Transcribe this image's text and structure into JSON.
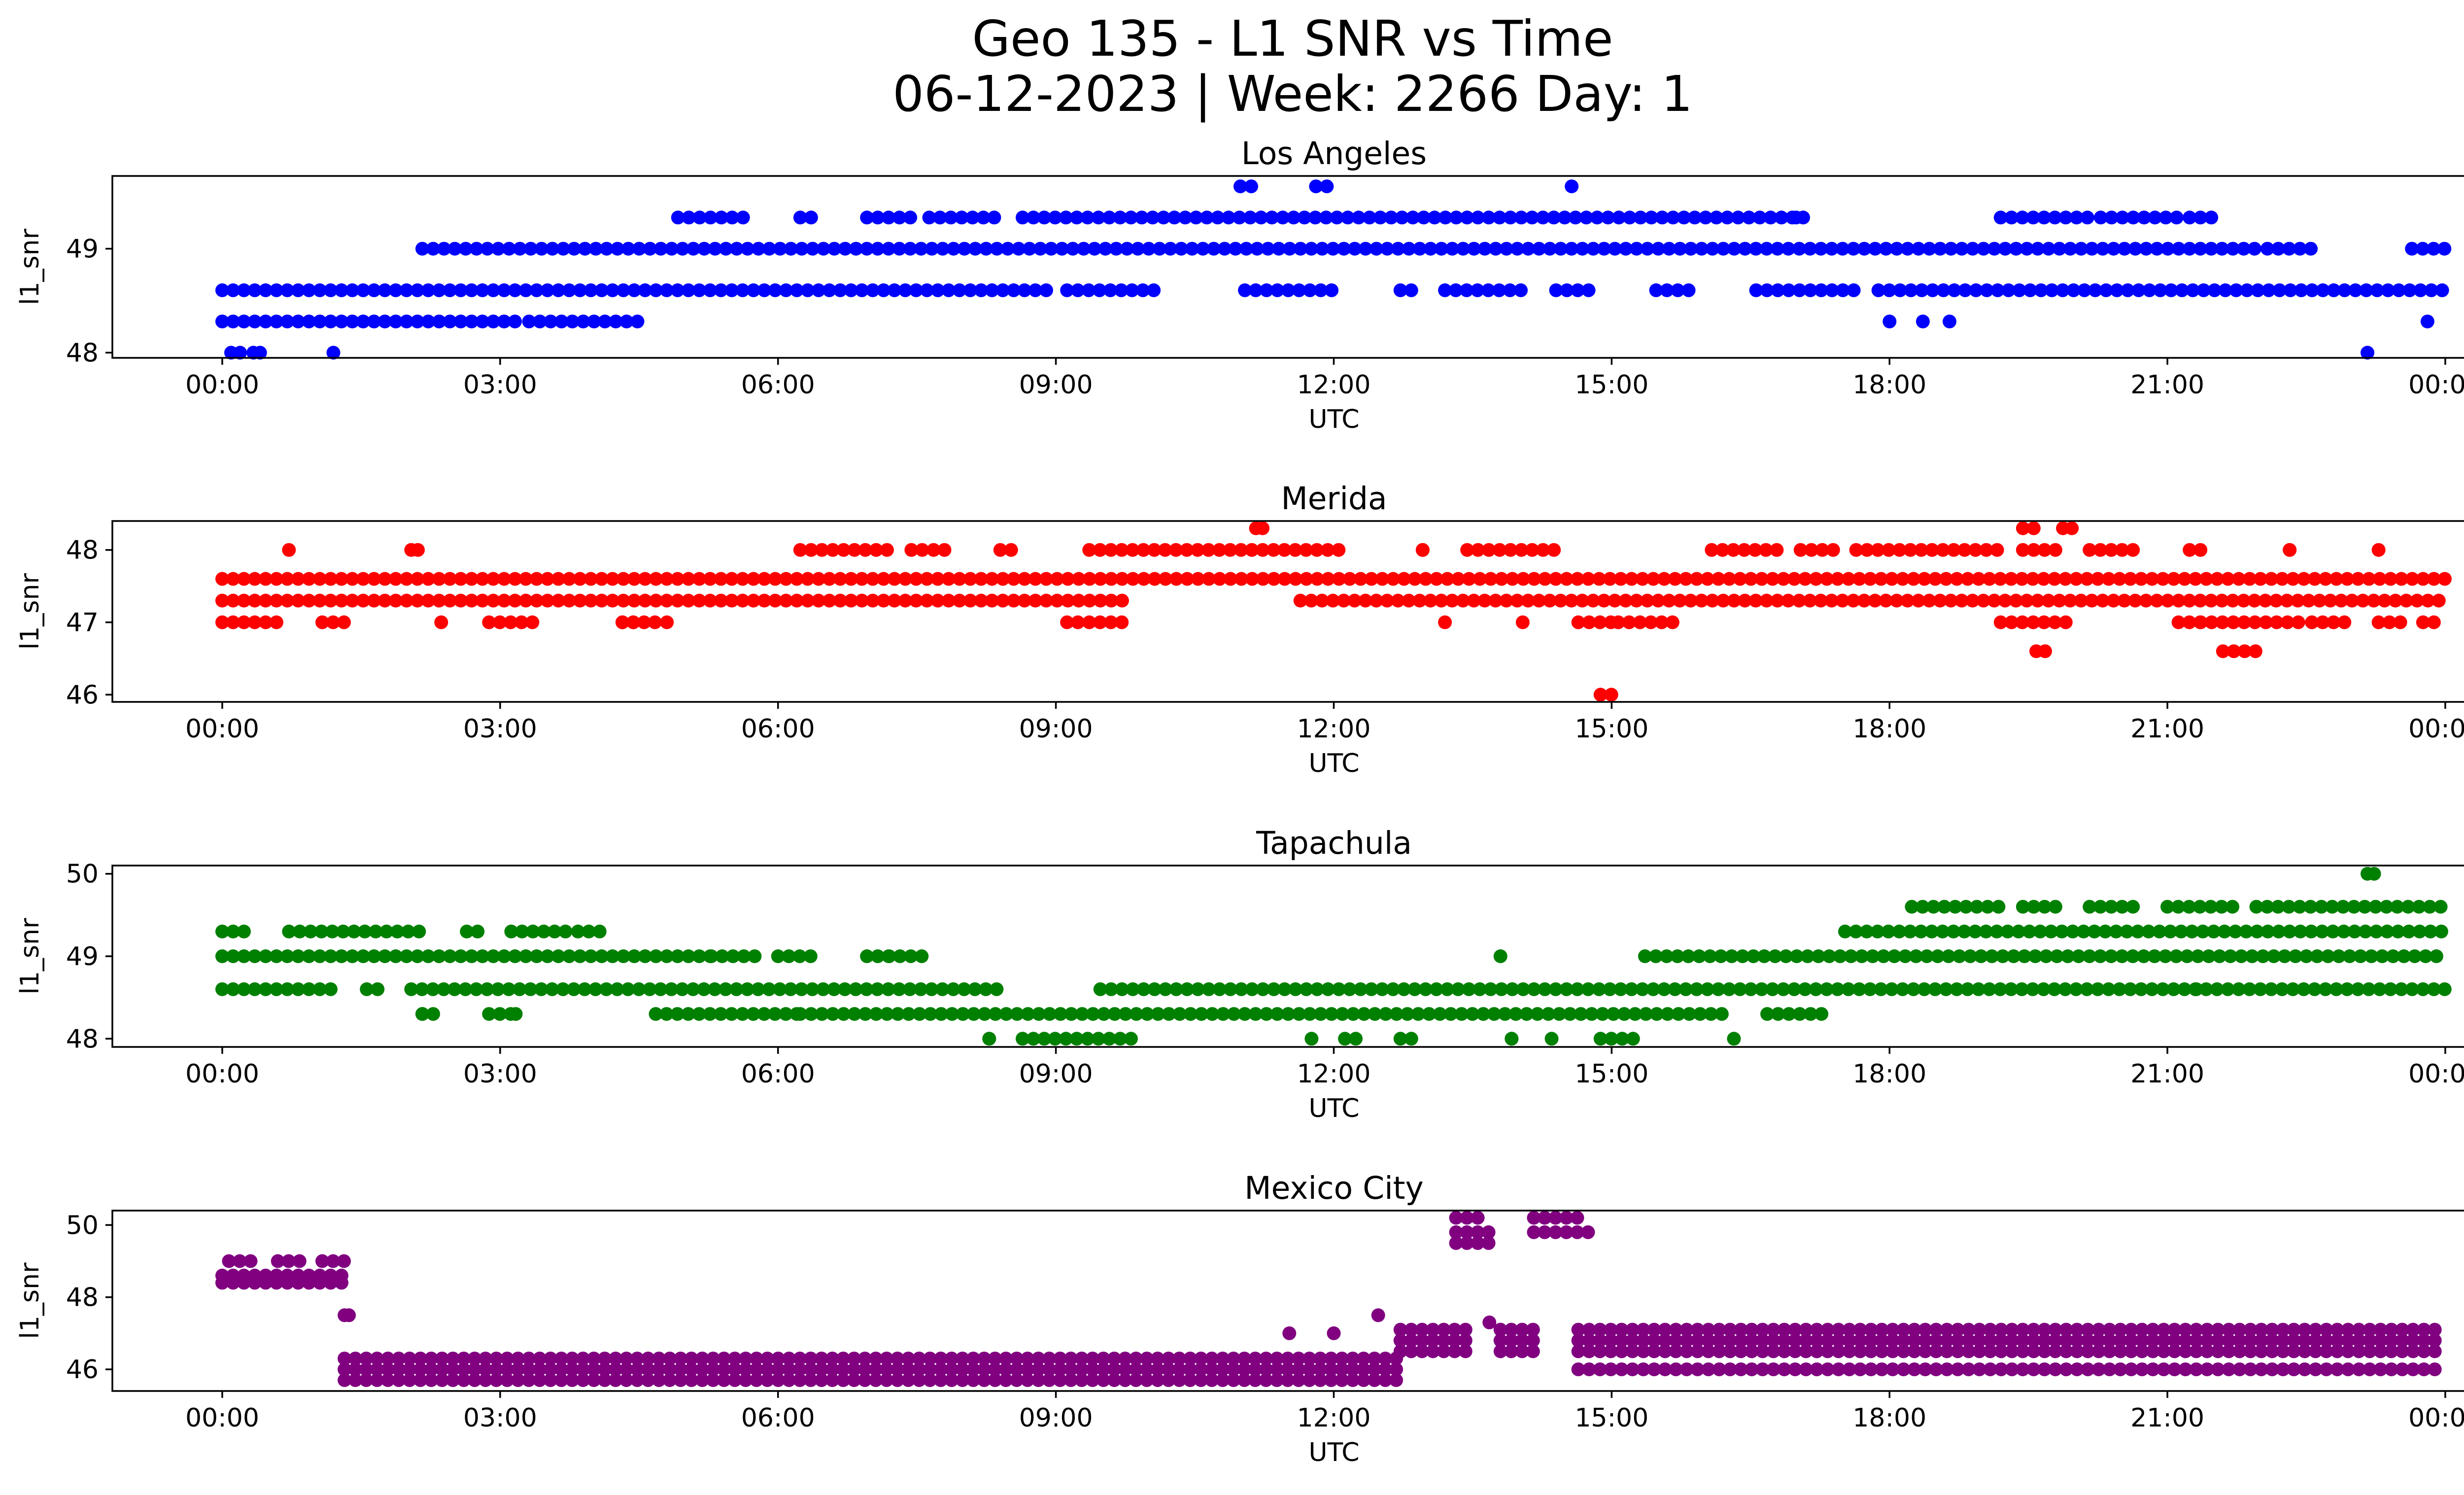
{
  "figure": {
    "title_line1": "Geo 135 - L1 SNR vs Time",
    "title_line2": "06-12-2023 | Week: 2266 Day: 1"
  },
  "chart_data": [
    {
      "type": "scatter",
      "title": "Los Angeles",
      "xlabel": "UTC",
      "ylabel": "l1_snr",
      "color": "#0000ff",
      "xlim": [
        -0.05,
        1.0
      ],
      "ylim": [
        47.95,
        49.7
      ],
      "x_ticks": [
        "00:00",
        "03:00",
        "06:00",
        "09:00",
        "12:00",
        "15:00",
        "18:00",
        "21:00",
        "00:00"
      ],
      "y_ticks": [
        48,
        49
      ],
      "grid": false,
      "bands": [
        {
          "y": 48.0,
          "segments": [
            [
              0.004,
              0.008
            ],
            [
              0.014,
              0.017
            ]
          ]
        },
        {
          "y": 48.3,
          "segments": [
            [
              0.0,
              0.135
            ],
            [
              0.138,
              0.188
            ]
          ]
        },
        {
          "y": 48.6,
          "segments": [
            [
              0.0,
              0.375
            ],
            [
              0.38,
              0.42
            ],
            [
              0.46,
              0.5
            ],
            [
              0.53,
              0.536
            ],
            [
              0.55,
              0.585
            ],
            [
              0.6,
              0.615
            ],
            [
              0.645,
              0.66
            ],
            [
              0.69,
              0.735
            ],
            [
              0.745,
              1.0
            ]
          ]
        },
        {
          "y": 49.0,
          "segments": [
            [
              0.09,
              0.915
            ],
            [
              0.92,
              0.94
            ],
            [
              0.985,
              1.0
            ]
          ]
        },
        {
          "y": 49.3,
          "segments": [
            [
              0.205,
              0.235
            ],
            [
              0.26,
              0.266
            ],
            [
              0.29,
              0.31
            ],
            [
              0.318,
              0.35
            ],
            [
              0.36,
              0.715
            ],
            [
              0.8,
              0.84
            ],
            [
              0.845,
              0.88
            ],
            [
              0.885,
              0.895
            ]
          ]
        },
        {
          "y": 49.6,
          "segments": [
            [
              0.458,
              0.465
            ],
            [
              0.492,
              0.5
            ]
          ]
        }
      ],
      "points": [
        {
          "x": 0.05,
          "y": 48.0
        },
        {
          "x": 0.965,
          "y": 48.0
        },
        {
          "x": 0.708,
          "y": 49.3
        },
        {
          "x": 0.607,
          "y": 49.6
        },
        {
          "x": 0.75,
          "y": 48.3
        },
        {
          "x": 0.765,
          "y": 48.3
        },
        {
          "x": 0.777,
          "y": 48.3
        },
        {
          "x": 0.992,
          "y": 48.3
        }
      ]
    },
    {
      "type": "scatter",
      "title": "Merida",
      "xlabel": "UTC",
      "ylabel": "l1_snr",
      "color": "#ff0000",
      "xlim": [
        -0.05,
        1.0
      ],
      "ylim": [
        45.9,
        48.4
      ],
      "x_ticks": [
        "00:00",
        "03:00",
        "06:00",
        "09:00",
        "12:00",
        "15:00",
        "18:00",
        "21:00",
        "00:00"
      ],
      "y_ticks": [
        46,
        47,
        48
      ],
      "grid": false,
      "bands": [
        {
          "y": 46.0,
          "segments": [
            [
              0.62,
              0.625
            ]
          ]
        },
        {
          "y": 46.6,
          "segments": [
            [
              0.816,
              0.82
            ],
            [
              0.9,
              0.915
            ]
          ]
        },
        {
          "y": 47.0,
          "segments": [
            [
              0.0,
              0.025
            ],
            [
              0.045,
              0.055
            ],
            [
              0.12,
              0.14
            ],
            [
              0.18,
              0.185
            ],
            [
              0.18,
              0.195
            ],
            [
              0.39,
              0.405
            ],
            [
              0.38,
              0.385
            ],
            [
              0.61,
              0.625
            ],
            [
              0.628,
              0.655
            ],
            [
              0.8,
              0.83
            ],
            [
              0.88,
              0.89
            ],
            [
              0.89,
              0.935
            ],
            [
              0.94,
              0.955
            ],
            [
              0.97,
              0.98
            ],
            [
              0.99,
              0.997
            ]
          ]
        },
        {
          "y": 47.3,
          "segments": [
            [
              0.0,
              0.405
            ],
            [
              0.485,
              1.0
            ]
          ]
        },
        {
          "y": 47.6,
          "segments": [
            [
              0.0,
              1.0
            ]
          ]
        },
        {
          "y": 48.0,
          "segments": [
            [
              0.26,
              0.3
            ],
            [
              0.31,
              0.315
            ],
            [
              0.32,
              0.325
            ],
            [
              0.35,
              0.355
            ],
            [
              0.39,
              0.505
            ],
            [
              0.54,
              0.54
            ],
            [
              0.56,
              0.6
            ],
            [
              0.67,
              0.7
            ],
            [
              0.71,
              0.725
            ],
            [
              0.735,
              0.8
            ],
            [
              0.81,
              0.825
            ],
            [
              0.84,
              0.86
            ],
            [
              0.885,
              0.89
            ],
            [
              0.93,
              0.93
            ]
          ]
        },
        {
          "y": 48.3,
          "segments": [
            [
              0.465,
              0.468
            ],
            [
              0.81,
              0.815
            ],
            [
              0.828,
              0.832
            ]
          ]
        }
      ],
      "points": [
        {
          "x": 0.03,
          "y": 48.0
        },
        {
          "x": 0.085,
          "y": 48.0
        },
        {
          "x": 0.088,
          "y": 48.0
        },
        {
          "x": 0.0985,
          "y": 47.0
        },
        {
          "x": 0.2,
          "y": 47.0
        },
        {
          "x": 0.55,
          "y": 47.0
        },
        {
          "x": 0.585,
          "y": 47.0
        },
        {
          "x": 0.97,
          "y": 48.0
        }
      ]
    },
    {
      "type": "scatter",
      "title": "Tapachula",
      "xlabel": "UTC",
      "ylabel": "l1_snr",
      "color": "#008000",
      "xlim": [
        -0.05,
        1.0
      ],
      "ylim": [
        47.9,
        50.1
      ],
      "x_ticks": [
        "00:00",
        "03:00",
        "06:00",
        "09:00",
        "12:00",
        "15:00",
        "18:00",
        "21:00",
        "00:00"
      ],
      "y_ticks": [
        48,
        49,
        50
      ],
      "grid": false,
      "bands": [
        {
          "y": 48.0,
          "segments": [
            [
              0.345,
              0.345
            ],
            [
              0.36,
              0.41
            ],
            [
              0.505,
              0.51
            ],
            [
              0.53,
              0.535
            ],
            [
              0.58,
              0.58
            ],
            [
              0.62,
              0.635
            ]
          ]
        },
        {
          "y": 48.3,
          "segments": [
            [
              0.09,
              0.095
            ],
            [
              0.12,
              0.13
            ],
            [
              0.195,
              0.26
            ],
            [
              0.26,
              0.675
            ],
            [
              0.695,
              0.72
            ]
          ]
        },
        {
          "y": 48.6,
          "segments": [
            [
              0.0,
              0.05
            ],
            [
              0.065,
              0.07
            ],
            [
              0.085,
              0.35
            ],
            [
              0.395,
              1.0
            ]
          ]
        },
        {
          "y": 49.0,
          "segments": [
            [
              0.0,
              0.22
            ],
            [
              0.22,
              0.24
            ],
            [
              0.25,
              0.265
            ],
            [
              0.29,
              0.3
            ],
            [
              0.3,
              0.315
            ],
            [
              0.64,
              1.0
            ]
          ]
        },
        {
          "y": 49.3,
          "segments": [
            [
              0.0,
              0.01
            ],
            [
              0.03,
              0.09
            ],
            [
              0.11,
              0.115
            ],
            [
              0.13,
              0.155
            ],
            [
              0.16,
              0.17
            ],
            [
              0.73,
              1.0
            ]
          ]
        },
        {
          "y": 49.6,
          "segments": [
            [
              0.76,
              0.8
            ],
            [
              0.81,
              0.825
            ],
            [
              0.84,
              0.86
            ],
            [
              0.875,
              0.905
            ],
            [
              0.915,
              1.0
            ]
          ]
        },
        {
          "y": 50.0,
          "segments": [
            [
              0.965,
              0.968
            ]
          ]
        }
      ],
      "points": [
        {
          "x": 0.575,
          "y": 49.0
        },
        {
          "x": 0.09,
          "y": 48.3
        },
        {
          "x": 0.132,
          "y": 48.3
        },
        {
          "x": 0.888,
          "y": 48.6
        },
        {
          "x": 0.68,
          "y": 48.0
        },
        {
          "x": 0.598,
          "y": 48.0
        },
        {
          "x": 0.49,
          "y": 48.0
        }
      ]
    },
    {
      "type": "scatter",
      "title": "Mexico City",
      "xlabel": "UTC",
      "ylabel": "l1_snr",
      "color": "#800080",
      "xlim": [
        -0.05,
        1.0
      ],
      "ylim": [
        45.4,
        50.4
      ],
      "x_ticks": [
        "00:00",
        "03:00",
        "06:00",
        "09:00",
        "12:00",
        "15:00",
        "18:00",
        "21:00",
        "00:00"
      ],
      "y_ticks": [
        46,
        48,
        50
      ],
      "grid": false,
      "bands": [
        {
          "y": 48.4,
          "segments": [
            [
              0.0,
              0.055
            ]
          ]
        },
        {
          "y": 48.6,
          "segments": [
            [
              0.0,
              0.055
            ]
          ]
        },
        {
          "y": 49.0,
          "segments": [
            [
              0.003,
              0.015
            ],
            [
              0.025,
              0.035
            ],
            [
              0.045,
              0.055
            ]
          ]
        },
        {
          "y": 47.5,
          "segments": [
            [
              0.055,
              0.057
            ]
          ]
        },
        {
          "y": 46.3,
          "segments": [
            [
              0.055,
              0.53
            ]
          ]
        },
        {
          "y": 46.0,
          "segments": [
            [
              0.055,
              0.53
            ]
          ]
        },
        {
          "y": 45.7,
          "segments": [
            [
              0.055,
              0.53
            ]
          ]
        },
        {
          "y": 47.1,
          "segments": [
            [
              0.53,
              0.56
            ],
            [
              0.575,
              0.59
            ],
            [
              0.61,
              1.0
            ]
          ]
        },
        {
          "y": 46.8,
          "segments": [
            [
              0.53,
              0.56
            ],
            [
              0.575,
              0.59
            ],
            [
              0.61,
              1.0
            ]
          ]
        },
        {
          "y": 46.5,
          "segments": [
            [
              0.53,
              0.56
            ],
            [
              0.575,
              0.59
            ],
            [
              0.61,
              1.0
            ]
          ]
        },
        {
          "y": 49.8,
          "segments": [
            [
              0.555,
              0.57
            ],
            [
              0.59,
              0.615
            ]
          ]
        },
        {
          "y": 50.2,
          "segments": [
            [
              0.555,
              0.565
            ],
            [
              0.59,
              0.61
            ]
          ]
        },
        {
          "y": 49.5,
          "segments": [
            [
              0.555,
              0.57
            ]
          ]
        },
        {
          "y": 46.0,
          "segments": [
            [
              0.61,
              1.0
            ]
          ]
        }
      ],
      "points": [
        {
          "x": 0.48,
          "y": 47.0
        },
        {
          "x": 0.5,
          "y": 47.0
        },
        {
          "x": 0.52,
          "y": 47.5
        },
        {
          "x": 0.57,
          "y": 47.3
        }
      ]
    }
  ]
}
